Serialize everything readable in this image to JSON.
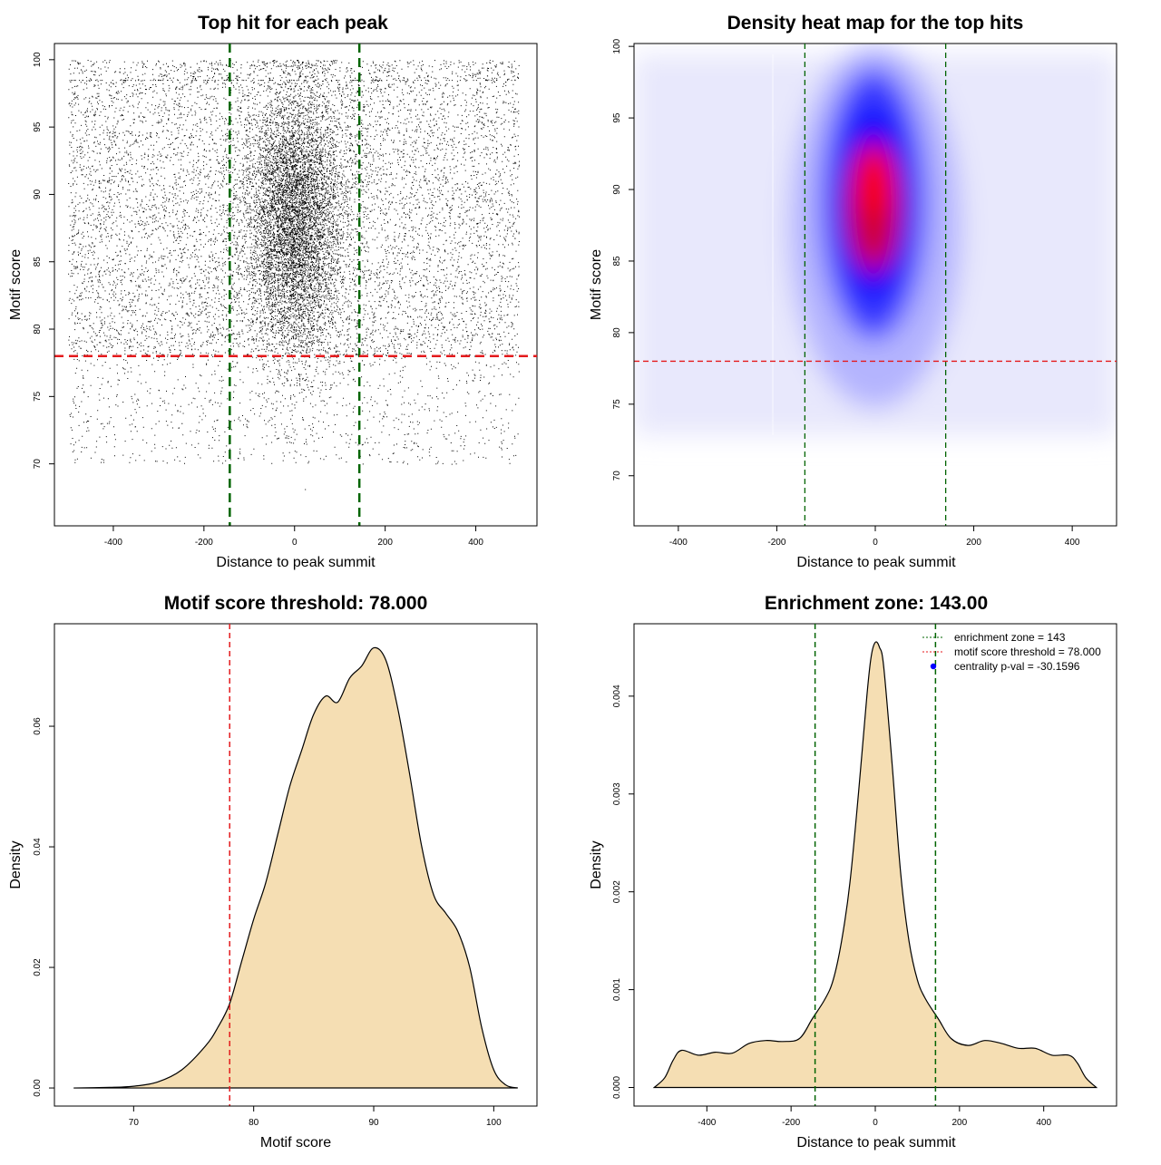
{
  "colors": {
    "green": "#006400",
    "red": "#e41a1c",
    "fill": "#f5deb3",
    "dot": "#000000",
    "heat_low": "#ffffff",
    "heat_mid": "#0000ff",
    "heat_high": "#ff0000",
    "legend_dot": "#0000ff"
  },
  "chart_data": [
    {
      "id": "scatter",
      "type": "scatter",
      "title": "Top hit for each peak",
      "xlabel": "Distance to peak summit",
      "ylabel": "Motif score",
      "xlim": [
        -530,
        535
      ],
      "ylim": [
        65.4,
        101.2
      ],
      "xticks": [
        -400,
        -200,
        0,
        200,
        400
      ],
      "yticks": [
        70,
        75,
        80,
        85,
        90,
        95,
        100
      ],
      "vlines": [
        -143,
        143
      ],
      "hline": 78,
      "point_count": 16000,
      "description_params": {
        "center_sd_x": 55,
        "center_mean_y": 88,
        "center_sd_y": 5,
        "uniform_x_range": [
          -500,
          495
        ]
      }
    },
    {
      "id": "heatmap",
      "type": "heatmap",
      "title": "Density heat map for the top hits",
      "xlabel": "Distance to peak summit",
      "ylabel": "Motif score",
      "xlim": [
        -490,
        490
      ],
      "ylim": [
        66.5,
        100.2
      ],
      "xticks": [
        -400,
        -200,
        0,
        200,
        400
      ],
      "yticks": [
        70,
        75,
        80,
        85,
        90,
        95,
        100
      ],
      "vlines": [
        -143,
        143
      ],
      "hline": 78
    },
    {
      "id": "score-density",
      "type": "area",
      "title": "Motif score threshold: 78.000",
      "xlabel": "Motif score",
      "ylabel": "Density",
      "xlim": [
        63.4,
        103.6
      ],
      "ylim": [
        -0.003,
        0.077
      ],
      "xticks": [
        70,
        80,
        90,
        100
      ],
      "yticks": [
        0.0,
        0.02,
        0.04,
        0.06
      ],
      "ytick_labels": [
        "0.00",
        "0.02",
        "0.04",
        "0.06"
      ],
      "vline": 78,
      "x": [
        65,
        68,
        70,
        72,
        74,
        76,
        77,
        78,
        79,
        80,
        81,
        82,
        83,
        84,
        85,
        86,
        87,
        88,
        89,
        90,
        91,
        92,
        93,
        94,
        95,
        96,
        97,
        98,
        99,
        100,
        101,
        102
      ],
      "y": [
        0.0,
        0.0001,
        0.0003,
        0.001,
        0.003,
        0.007,
        0.01,
        0.014,
        0.021,
        0.028,
        0.034,
        0.042,
        0.05,
        0.056,
        0.062,
        0.065,
        0.064,
        0.068,
        0.07,
        0.073,
        0.071,
        0.063,
        0.052,
        0.04,
        0.032,
        0.029,
        0.026,
        0.02,
        0.01,
        0.003,
        0.0005,
        0.0
      ]
    },
    {
      "id": "distance-density",
      "type": "area",
      "title": "Enrichment zone: 143.00",
      "xlabel": "Distance to peak summit",
      "ylabel": "Density",
      "xlim": [
        -573,
        573
      ],
      "ylim": [
        -0.00019,
        0.00474
      ],
      "xticks": [
        -400,
        -200,
        0,
        200,
        400
      ],
      "yticks": [
        0.0,
        0.001,
        0.002,
        0.003,
        0.004
      ],
      "ytick_labels": [
        "0.000",
        "0.001",
        "0.002",
        "0.003",
        "0.004"
      ],
      "vlines": [
        -143,
        143
      ],
      "x": [
        -525,
        -500,
        -480,
        -460,
        -420,
        -380,
        -340,
        -300,
        -260,
        -220,
        -180,
        -150,
        -120,
        -100,
        -80,
        -60,
        -40,
        -20,
        -10,
        0,
        10,
        20,
        40,
        60,
        80,
        100,
        120,
        150,
        180,
        220,
        260,
        300,
        340,
        380,
        420,
        460,
        480,
        500,
        525
      ],
      "y": [
        0.0,
        0.0001,
        0.00028,
        0.00038,
        0.00033,
        0.00036,
        0.00035,
        0.00045,
        0.00048,
        0.00047,
        0.0005,
        0.0007,
        0.0009,
        0.0011,
        0.0015,
        0.0021,
        0.003,
        0.004,
        0.0044,
        0.00455,
        0.0045,
        0.0043,
        0.0033,
        0.0022,
        0.0015,
        0.0011,
        0.0009,
        0.0007,
        0.0005,
        0.00043,
        0.00048,
        0.00045,
        0.0004,
        0.0004,
        0.00033,
        0.00033,
        0.00025,
        0.0001,
        0.0
      ],
      "legend": [
        {
          "label": "enrichment zone = 143",
          "style": "green-dash"
        },
        {
          "label": "motif score threshold = 78.000",
          "style": "red-dash"
        },
        {
          "label": "centrality p-val = -30.1596",
          "style": "blue-dot"
        }
      ]
    }
  ]
}
